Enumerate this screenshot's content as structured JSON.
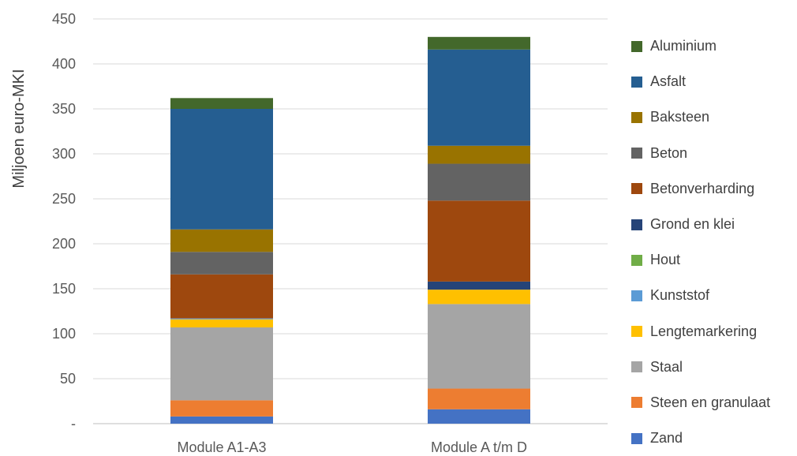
{
  "chart_data": {
    "type": "bar",
    "stacked": true,
    "ylabel": "Miljoen euro-MKI",
    "ylim": [
      0,
      450
    ],
    "yticks": [
      0,
      50,
      100,
      150,
      200,
      250,
      300,
      350,
      400,
      450
    ],
    "ytick_labels": [
      "-",
      "50",
      "100",
      "150",
      "200",
      "250",
      "300",
      "350",
      "400",
      "450"
    ],
    "grid": true,
    "legend_position": "right",
    "categories": [
      "Module A1-A3",
      "Module A t/m D"
    ],
    "series": [
      {
        "name": "Zand",
        "color": "#4472C4",
        "values": [
          8,
          16
        ]
      },
      {
        "name": "Steen en granulaat",
        "color": "#ED7D31",
        "values": [
          18,
          23
        ]
      },
      {
        "name": "Staal",
        "color": "#A5A5A5",
        "values": [
          81,
          94
        ]
      },
      {
        "name": "Lengtemarkering",
        "color": "#FFC000",
        "values": [
          9,
          16
        ]
      },
      {
        "name": "Kunststof",
        "color": "#5B9BD5",
        "values": [
          1,
          0
        ]
      },
      {
        "name": "Hout",
        "color": "#70AD47",
        "values": [
          0,
          0
        ]
      },
      {
        "name": "Grond en klei",
        "color": "#264478",
        "values": [
          0,
          9
        ]
      },
      {
        "name": "Betonverharding",
        "color": "#9E480E",
        "values": [
          49,
          90
        ]
      },
      {
        "name": "Beton",
        "color": "#636363",
        "values": [
          25,
          41
        ]
      },
      {
        "name": "Baksteen",
        "color": "#997300",
        "values": [
          25,
          20
        ]
      },
      {
        "name": "Asfalt",
        "color": "#255E91",
        "values": [
          134,
          107
        ]
      },
      {
        "name": "Aluminium",
        "color": "#43682B",
        "values": [
          12,
          14
        ]
      }
    ]
  }
}
